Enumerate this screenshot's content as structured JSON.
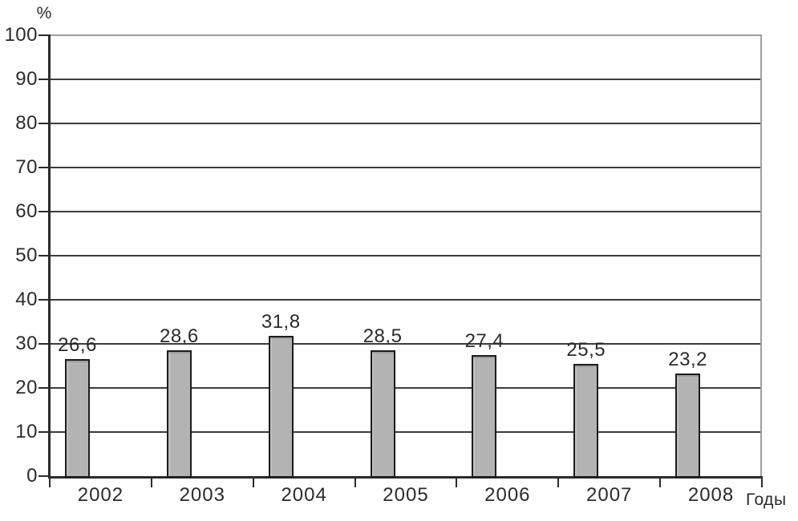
{
  "chart_data": {
    "type": "bar",
    "title": "",
    "categories": [
      "2002",
      "2003",
      "2004",
      "2005",
      "2006",
      "2007",
      "2008"
    ],
    "values": [
      26.6,
      28.6,
      31.8,
      28.5,
      27.4,
      25.5,
      23.2
    ],
    "value_labels": [
      "26,6",
      "28,6",
      "31,8",
      "28,5",
      "27,4",
      "25,5",
      "23,2"
    ],
    "ylabel": "%",
    "xlabel": "Годы",
    "ylim": [
      0,
      100
    ],
    "ytick_step": 10,
    "ytick_labels": [
      "0",
      "10",
      "20",
      "30",
      "40",
      "50",
      "60",
      "70",
      "80",
      "90",
      "100"
    ],
    "grid": true,
    "legend": "none",
    "bar_color": "#b3b3b3",
    "bar_border_color": "#1c1c1c",
    "gridline_color": "#3c3c3c",
    "axis_color": "#2b2b2b",
    "frame_color": "#9e9e9e"
  }
}
